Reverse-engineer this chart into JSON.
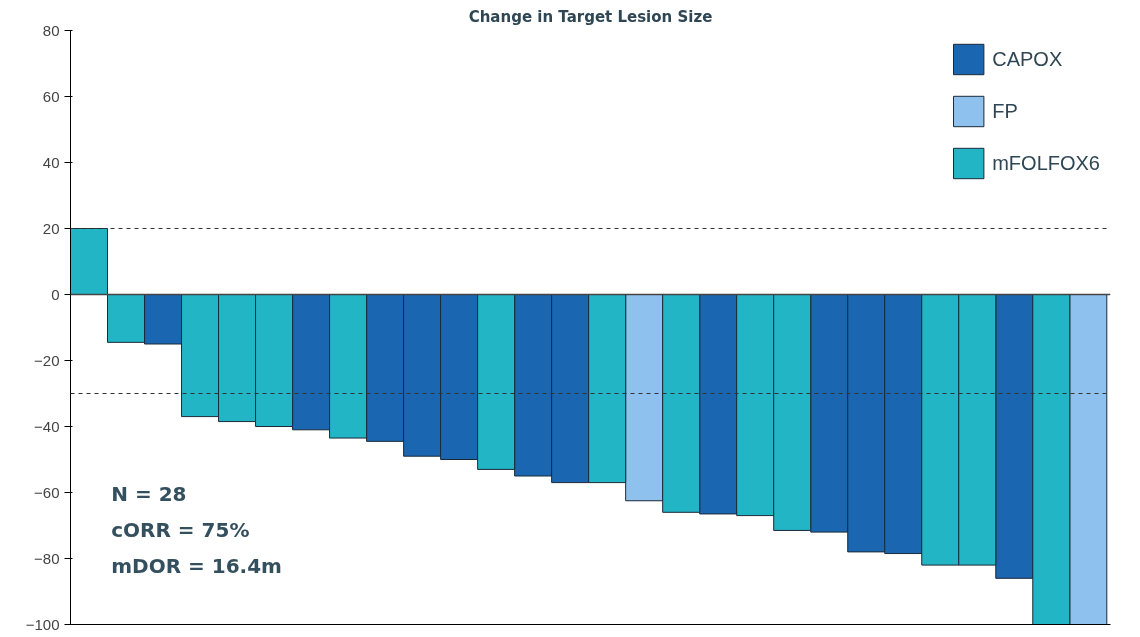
{
  "chart_data": {
    "type": "bar",
    "title": "Change in Target Lesion Size",
    "categories": [
      null,
      null,
      null,
      null,
      null,
      null,
      null,
      null,
      null,
      null,
      null,
      null,
      null,
      null,
      null,
      null,
      null,
      null,
      null,
      null,
      null,
      null,
      null,
      null,
      null,
      null,
      null,
      null
    ],
    "series": [
      {
        "name": "CAPOX",
        "color": "#1a66b0",
        "values": [
          null,
          null,
          -15,
          null,
          null,
          null,
          -41,
          null,
          -44.5,
          -49,
          -50,
          null,
          -55,
          -57,
          null,
          null,
          null,
          -66.5,
          null,
          null,
          -72,
          -78,
          -78.5,
          null,
          null,
          -86,
          null,
          null
        ]
      },
      {
        "name": "FP",
        "color": "#8fc1ee",
        "values": [
          null,
          null,
          null,
          null,
          null,
          null,
          null,
          null,
          null,
          null,
          null,
          null,
          null,
          null,
          null,
          -62.5,
          null,
          null,
          null,
          null,
          null,
          null,
          null,
          null,
          null,
          null,
          null,
          -100
        ]
      },
      {
        "name": "mFOLFOX6",
        "color": "#22b5c6",
        "values": [
          20,
          -14.5,
          null,
          -37,
          -38.5,
          -40,
          null,
          -43.5,
          null,
          null,
          null,
          -53,
          null,
          null,
          -57,
          null,
          -66,
          null,
          -67,
          -71.5,
          null,
          null,
          null,
          -82,
          -82,
          null,
          -100,
          null
        ]
      }
    ],
    "ylim": [
      -100,
      80
    ],
    "yticks": [
      -100,
      -80,
      -60,
      -40,
      -20,
      0,
      20,
      40,
      60,
      80
    ],
    "tick_labels": "y",
    "grid": false,
    "legend": "top right",
    "ref_lines": [
      {
        "axis": "y",
        "value": 20,
        "line_style": "dashed"
      },
      {
        "axis": "y",
        "value": -30,
        "line_style": "dashed"
      }
    ],
    "annotations": [
      "N = 28",
      "cORR = 75%",
      "mDOR = 16.4m"
    ]
  }
}
